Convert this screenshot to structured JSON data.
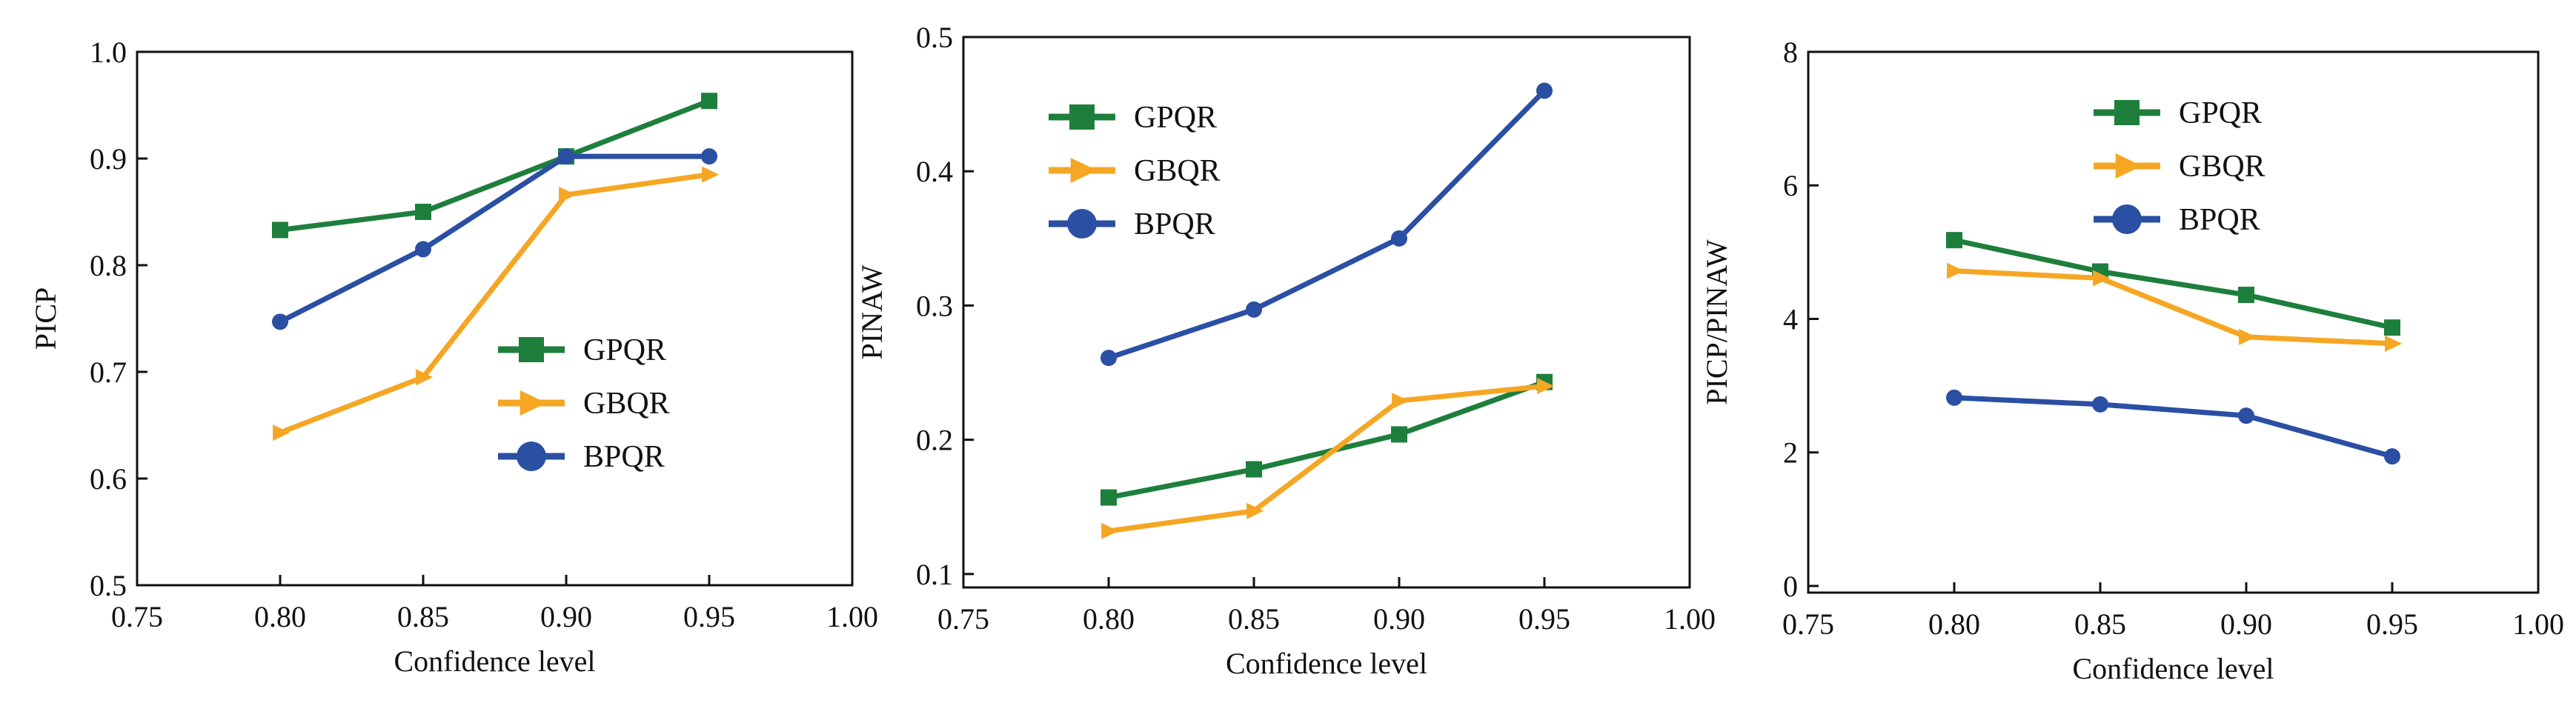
{
  "chart_data": [
    {
      "type": "line",
      "xlabel": "Confidence level",
      "ylabel": "PICP",
      "xlim": [
        0.75,
        1.0
      ],
      "ylim": [
        0.5,
        1.0
      ],
      "xticks": [
        "0.75",
        "0.80",
        "0.85",
        "0.90",
        "0.95",
        "1.00"
      ],
      "yticks": [
        "0.5",
        "0.6",
        "0.7",
        "0.8",
        "0.9",
        "1.0"
      ],
      "x": [
        0.8,
        0.85,
        0.9,
        0.95
      ],
      "legend_position": "lower-right",
      "series": [
        {
          "name": "GPQR",
          "color": "#1e7f3c",
          "marker": "square",
          "values": [
            0.833,
            0.85,
            0.902,
            0.954
          ]
        },
        {
          "name": "GBQR",
          "color": "#f5a623",
          "marker": "triangle-right",
          "values": [
            0.643,
            0.695,
            0.866,
            0.885
          ]
        },
        {
          "name": "BPQR",
          "color": "#2a4fa3",
          "marker": "circle",
          "values": [
            0.747,
            0.815,
            0.902,
            0.902
          ]
        }
      ]
    },
    {
      "type": "line",
      "xlabel": "Confidence level",
      "ylabel": "PINAW",
      "xlim": [
        0.75,
        1.0
      ],
      "ylim": [
        0.09,
        0.5
      ],
      "xticks": [
        "0.75",
        "0.80",
        "0.85",
        "0.90",
        "0.95",
        "1.00"
      ],
      "yticks": [
        "0.1",
        "0.2",
        "0.3",
        "0.4",
        "0.5"
      ],
      "x": [
        0.8,
        0.85,
        0.9,
        0.95
      ],
      "legend_position": "upper-left",
      "series": [
        {
          "name": "GPQR",
          "color": "#1e7f3c",
          "marker": "square",
          "values": [
            0.157,
            0.178,
            0.204,
            0.243
          ]
        },
        {
          "name": "GBQR",
          "color": "#f5a623",
          "marker": "triangle-right",
          "values": [
            0.132,
            0.147,
            0.229,
            0.24
          ]
        },
        {
          "name": "BPQR",
          "color": "#2a4fa3",
          "marker": "circle",
          "values": [
            0.261,
            0.297,
            0.35,
            0.46
          ]
        }
      ]
    },
    {
      "type": "line",
      "xlabel": "Confidence level",
      "ylabel": "PICP/PINAW",
      "xlim": [
        0.75,
        1.0
      ],
      "ylim": [
        -0.1,
        8.0
      ],
      "xticks": [
        "0.75",
        "0.80",
        "0.85",
        "0.90",
        "0.95",
        "1.00"
      ],
      "yticks": [
        "0",
        "2",
        "4",
        "6",
        "8"
      ],
      "x": [
        0.8,
        0.85,
        0.9,
        0.95
      ],
      "legend_position": "upper-center",
      "series": [
        {
          "name": "GPQR",
          "color": "#1e7f3c",
          "marker": "square",
          "values": [
            5.18,
            4.71,
            4.36,
            3.87
          ]
        },
        {
          "name": "GBQR",
          "color": "#f5a623",
          "marker": "triangle-right",
          "values": [
            4.72,
            4.61,
            3.73,
            3.63
          ]
        },
        {
          "name": "BPQR",
          "color": "#2a4fa3",
          "marker": "circle",
          "values": [
            2.82,
            2.72,
            2.55,
            1.94
          ]
        }
      ]
    }
  ]
}
